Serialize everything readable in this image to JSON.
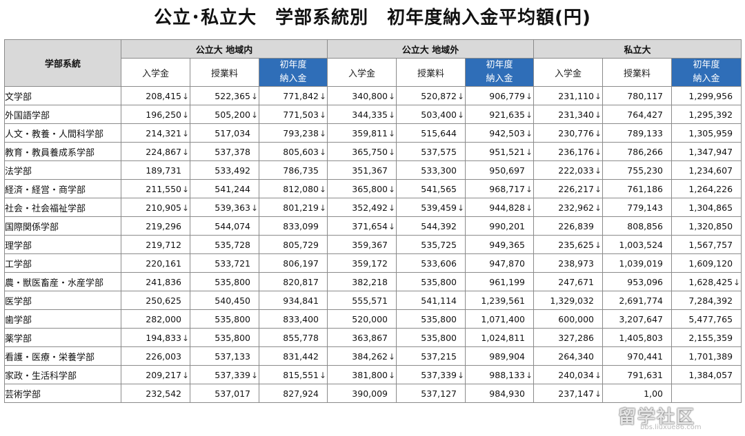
{
  "title": "公立･私立大　学部系統別　初年度納入金平均額(円)",
  "header": {
    "corner_label": "学部系統",
    "groups": [
      {
        "label": "公立大 地域内"
      },
      {
        "label": "公立大 地域外"
      },
      {
        "label": "私立大"
      }
    ],
    "sub_labels": {
      "admission": "入学金",
      "tuition": "授業料",
      "total_line1": "初年度",
      "total_line2": "納入金"
    }
  },
  "arrow_glyph": "↓",
  "rows": [
    {
      "name": "文学部",
      "cells": [
        {
          "v": "208,415",
          "d": "↓"
        },
        {
          "v": "522,365",
          "d": "↓"
        },
        {
          "v": "771,842",
          "d": "↓"
        },
        {
          "v": "340,800",
          "d": "↓"
        },
        {
          "v": "520,872",
          "d": "↓"
        },
        {
          "v": "906,779",
          "d": "↓"
        },
        {
          "v": "231,110",
          "d": "↓"
        },
        {
          "v": "780,117",
          "d": ""
        },
        {
          "v": "1,299,956",
          "d": ""
        }
      ]
    },
    {
      "name": "外国語学部",
      "cells": [
        {
          "v": "196,250",
          "d": "↓"
        },
        {
          "v": "505,200",
          "d": "↓"
        },
        {
          "v": "771,503",
          "d": "↓"
        },
        {
          "v": "344,335",
          "d": "↓"
        },
        {
          "v": "503,400",
          "d": "↓"
        },
        {
          "v": "921,635",
          "d": "↓"
        },
        {
          "v": "231,340",
          "d": "↓"
        },
        {
          "v": "764,427",
          "d": ""
        },
        {
          "v": "1,295,392",
          "d": ""
        }
      ]
    },
    {
      "name": "人文・教養・人間科学部",
      "cells": [
        {
          "v": "214,321",
          "d": "↓"
        },
        {
          "v": "517,034",
          "d": ""
        },
        {
          "v": "793,238",
          "d": "↓"
        },
        {
          "v": "359,811",
          "d": "↓"
        },
        {
          "v": "515,644",
          "d": ""
        },
        {
          "v": "942,503",
          "d": "↓"
        },
        {
          "v": "230,776",
          "d": "↓"
        },
        {
          "v": "789,133",
          "d": ""
        },
        {
          "v": "1,305,959",
          "d": ""
        }
      ]
    },
    {
      "name": "教育・教員養成系学部",
      "cells": [
        {
          "v": "224,867",
          "d": "↓"
        },
        {
          "v": "537,378",
          "d": ""
        },
        {
          "v": "805,603",
          "d": "↓"
        },
        {
          "v": "365,750",
          "d": "↓"
        },
        {
          "v": "537,575",
          "d": ""
        },
        {
          "v": "951,521",
          "d": "↓"
        },
        {
          "v": "236,176",
          "d": "↓"
        },
        {
          "v": "786,266",
          "d": ""
        },
        {
          "v": "1,347,947",
          "d": ""
        }
      ]
    },
    {
      "name": "法学部",
      "cells": [
        {
          "v": "189,731",
          "d": ""
        },
        {
          "v": "533,492",
          "d": ""
        },
        {
          "v": "786,735",
          "d": ""
        },
        {
          "v": "351,367",
          "d": ""
        },
        {
          "v": "533,300",
          "d": ""
        },
        {
          "v": "950,697",
          "d": ""
        },
        {
          "v": "222,033",
          "d": "↓"
        },
        {
          "v": "755,230",
          "d": ""
        },
        {
          "v": "1,234,607",
          "d": ""
        }
      ]
    },
    {
      "name": "経済・経営・商学部",
      "cells": [
        {
          "v": "211,550",
          "d": "↓"
        },
        {
          "v": "541,244",
          "d": ""
        },
        {
          "v": "812,080",
          "d": "↓"
        },
        {
          "v": "365,800",
          "d": "↓"
        },
        {
          "v": "541,565",
          "d": ""
        },
        {
          "v": "968,717",
          "d": "↓"
        },
        {
          "v": "226,217",
          "d": "↓"
        },
        {
          "v": "761,186",
          "d": ""
        },
        {
          "v": "1,264,226",
          "d": ""
        }
      ]
    },
    {
      "name": "社会・社会福祉学部",
      "cells": [
        {
          "v": "210,905",
          "d": "↓"
        },
        {
          "v": "539,363",
          "d": "↓"
        },
        {
          "v": "801,219",
          "d": "↓"
        },
        {
          "v": "352,492",
          "d": "↓"
        },
        {
          "v": "539,459",
          "d": "↓"
        },
        {
          "v": "944,828",
          "d": "↓"
        },
        {
          "v": "232,962",
          "d": "↓"
        },
        {
          "v": "779,143",
          "d": ""
        },
        {
          "v": "1,304,865",
          "d": ""
        }
      ]
    },
    {
      "name": "国際関係学部",
      "cells": [
        {
          "v": "219,296",
          "d": ""
        },
        {
          "v": "544,074",
          "d": ""
        },
        {
          "v": "833,099",
          "d": ""
        },
        {
          "v": "371,654",
          "d": "↓"
        },
        {
          "v": "544,392",
          "d": ""
        },
        {
          "v": "990,201",
          "d": ""
        },
        {
          "v": "226,839",
          "d": ""
        },
        {
          "v": "808,856",
          "d": ""
        },
        {
          "v": "1,320,850",
          "d": ""
        }
      ]
    },
    {
      "name": "理学部",
      "cells": [
        {
          "v": "219,712",
          "d": ""
        },
        {
          "v": "535,728",
          "d": ""
        },
        {
          "v": "805,729",
          "d": ""
        },
        {
          "v": "359,367",
          "d": ""
        },
        {
          "v": "535,725",
          "d": ""
        },
        {
          "v": "949,365",
          "d": ""
        },
        {
          "v": "235,625",
          "d": "↓"
        },
        {
          "v": "1,003,524",
          "d": ""
        },
        {
          "v": "1,567,757",
          "d": ""
        }
      ]
    },
    {
      "name": "工学部",
      "cells": [
        {
          "v": "220,161",
          "d": ""
        },
        {
          "v": "533,721",
          "d": ""
        },
        {
          "v": "806,197",
          "d": ""
        },
        {
          "v": "359,172",
          "d": ""
        },
        {
          "v": "533,606",
          "d": ""
        },
        {
          "v": "947,870",
          "d": ""
        },
        {
          "v": "238,973",
          "d": ""
        },
        {
          "v": "1,039,019",
          "d": ""
        },
        {
          "v": "1,609,120",
          "d": ""
        }
      ]
    },
    {
      "name": "農・獣医畜産・水産学部",
      "cells": [
        {
          "v": "241,836",
          "d": ""
        },
        {
          "v": "535,800",
          "d": ""
        },
        {
          "v": "820,817",
          "d": ""
        },
        {
          "v": "382,218",
          "d": ""
        },
        {
          "v": "535,800",
          "d": ""
        },
        {
          "v": "961,199",
          "d": ""
        },
        {
          "v": "247,671",
          "d": ""
        },
        {
          "v": "953,096",
          "d": ""
        },
        {
          "v": "1,628,425",
          "d": "↓"
        }
      ]
    },
    {
      "name": "医学部",
      "cells": [
        {
          "v": "250,625",
          "d": ""
        },
        {
          "v": "540,450",
          "d": ""
        },
        {
          "v": "934,841",
          "d": ""
        },
        {
          "v": "555,571",
          "d": ""
        },
        {
          "v": "541,114",
          "d": ""
        },
        {
          "v": "1,239,561",
          "d": ""
        },
        {
          "v": "1,329,032",
          "d": ""
        },
        {
          "v": "2,691,774",
          "d": ""
        },
        {
          "v": "7,284,392",
          "d": ""
        }
      ]
    },
    {
      "name": "歯学部",
      "cells": [
        {
          "v": "282,000",
          "d": ""
        },
        {
          "v": "535,800",
          "d": ""
        },
        {
          "v": "833,400",
          "d": ""
        },
        {
          "v": "520,000",
          "d": ""
        },
        {
          "v": "535,800",
          "d": ""
        },
        {
          "v": "1,071,400",
          "d": ""
        },
        {
          "v": "600,000",
          "d": ""
        },
        {
          "v": "3,207,647",
          "d": ""
        },
        {
          "v": "5,477,765",
          "d": ""
        }
      ]
    },
    {
      "name": "薬学部",
      "cells": [
        {
          "v": "194,833",
          "d": "↓"
        },
        {
          "v": "535,800",
          "d": ""
        },
        {
          "v": "855,778",
          "d": ""
        },
        {
          "v": "363,867",
          "d": ""
        },
        {
          "v": "535,800",
          "d": ""
        },
        {
          "v": "1,024,811",
          "d": ""
        },
        {
          "v": "327,286",
          "d": ""
        },
        {
          "v": "1,405,803",
          "d": ""
        },
        {
          "v": "2,155,359",
          "d": ""
        }
      ]
    },
    {
      "name": "看護・医療・栄養学部",
      "cells": [
        {
          "v": "226,003",
          "d": ""
        },
        {
          "v": "537,133",
          "d": ""
        },
        {
          "v": "831,442",
          "d": ""
        },
        {
          "v": "384,262",
          "d": "↓"
        },
        {
          "v": "537,215",
          "d": ""
        },
        {
          "v": "989,904",
          "d": ""
        },
        {
          "v": "264,340",
          "d": ""
        },
        {
          "v": "970,441",
          "d": ""
        },
        {
          "v": "1,701,389",
          "d": ""
        }
      ]
    },
    {
      "name": "家政・生活科学部",
      "cells": [
        {
          "v": "209,217",
          "d": "↓"
        },
        {
          "v": "537,339",
          "d": "↓"
        },
        {
          "v": "815,551",
          "d": "↓"
        },
        {
          "v": "381,800",
          "d": "↓"
        },
        {
          "v": "537,339",
          "d": "↓"
        },
        {
          "v": "988,133",
          "d": "↓"
        },
        {
          "v": "240,034",
          "d": "↓"
        },
        {
          "v": "791,631",
          "d": ""
        },
        {
          "v": "1,384,057",
          "d": ""
        }
      ]
    },
    {
      "name": "芸術学部",
      "cells": [
        {
          "v": "232,542",
          "d": ""
        },
        {
          "v": "537,017",
          "d": ""
        },
        {
          "v": "827,924",
          "d": ""
        },
        {
          "v": "390,009",
          "d": ""
        },
        {
          "v": "537,127",
          "d": ""
        },
        {
          "v": "984,930",
          "d": ""
        },
        {
          "v": "237,147",
          "d": "↓"
        },
        {
          "v": "1,00",
          "d": ""
        },
        {
          "v": "",
          "d": ""
        }
      ]
    }
  ],
  "watermark": {
    "main": "留学社区",
    "sub": "bbs.liuxue86.com"
  }
}
